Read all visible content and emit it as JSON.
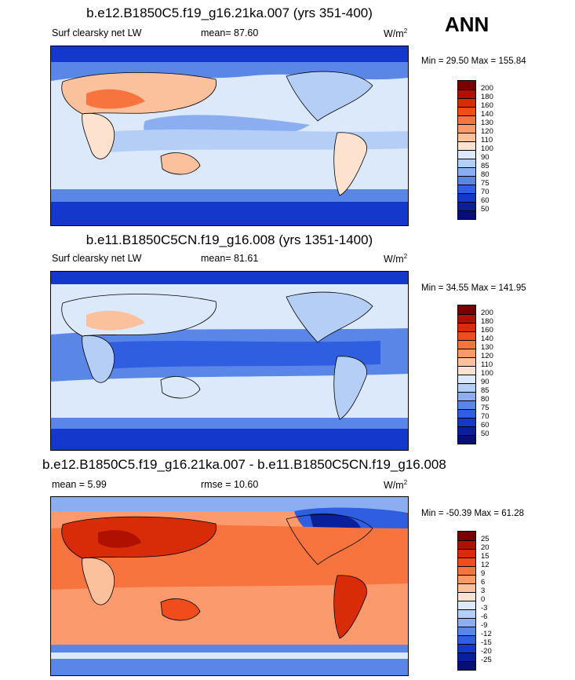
{
  "season": "ANN",
  "panels": [
    {
      "title": "b.e12.B1850C5.f19_g16.21ka.007 (yrs 351-400)",
      "variable": "Surf clearsky net LW",
      "stat_left": "mean=  87.60",
      "units": "W/m",
      "units_sup": "2",
      "minmax": "Min =  29.50 Max = 155.84",
      "scheme": "abs",
      "colorbar": {
        "labels": [
          "200",
          "180",
          "160",
          "140",
          "130",
          "120",
          "110",
          "100",
          "90",
          "85",
          "80",
          "75",
          "70",
          "60",
          "50"
        ],
        "colors": [
          "#7a0000",
          "#b01000",
          "#d82c08",
          "#f04c1c",
          "#f8743e",
          "#fb9a6c",
          "#fbc09c",
          "#fde2d0",
          "#dce9fa",
          "#b4cef6",
          "#8aaef0",
          "#5a86e8",
          "#2f5ee0",
          "#1437cc",
          "#0a1f9c",
          "#061070"
        ]
      }
    },
    {
      "title": "b.e11.B1850C5CN.f19_g16.008 (yrs 1351-1400)",
      "variable": "Surf clearsky net LW",
      "stat_left": "mean=  81.61",
      "units": "W/m",
      "units_sup": "2",
      "minmax": "Min =  34.55 Max = 141.95",
      "scheme": "abs",
      "colorbar": {
        "labels": [
          "200",
          "180",
          "160",
          "140",
          "130",
          "120",
          "110",
          "100",
          "90",
          "85",
          "80",
          "75",
          "70",
          "60",
          "50"
        ],
        "colors": [
          "#7a0000",
          "#b01000",
          "#d82c08",
          "#f04c1c",
          "#f8743e",
          "#fb9a6c",
          "#fbc09c",
          "#fde2d0",
          "#dce9fa",
          "#b4cef6",
          "#8aaef0",
          "#5a86e8",
          "#2f5ee0",
          "#1437cc",
          "#0a1f9c",
          "#061070"
        ]
      }
    },
    {
      "title": "b.e12.B1850C5.f19_g16.21ka.007 - b.e11.B1850C5CN.f19_g16.008",
      "variable": "",
      "stat_left": "mean =  5.99",
      "stat_mid": "rmse =  10.60",
      "units": "W/m",
      "units_sup": "2",
      "minmax": "Min = -50.39 Max =  61.28",
      "scheme": "diff",
      "colorbar": {
        "labels": [
          "25",
          "20",
          "15",
          "12",
          "9",
          "6",
          "3",
          "0",
          "-3",
          "-6",
          "-9",
          "-12",
          "-15",
          "-20",
          "-25"
        ],
        "colors": [
          "#7a0000",
          "#b01000",
          "#d82c08",
          "#f04c1c",
          "#f8743e",
          "#fb9a6c",
          "#fbc09c",
          "#fde2d0",
          "#dce9fa",
          "#b4cef6",
          "#8aaef0",
          "#5a86e8",
          "#2f5ee0",
          "#1437cc",
          "#0a1f9c",
          "#061070"
        ]
      }
    }
  ]
}
